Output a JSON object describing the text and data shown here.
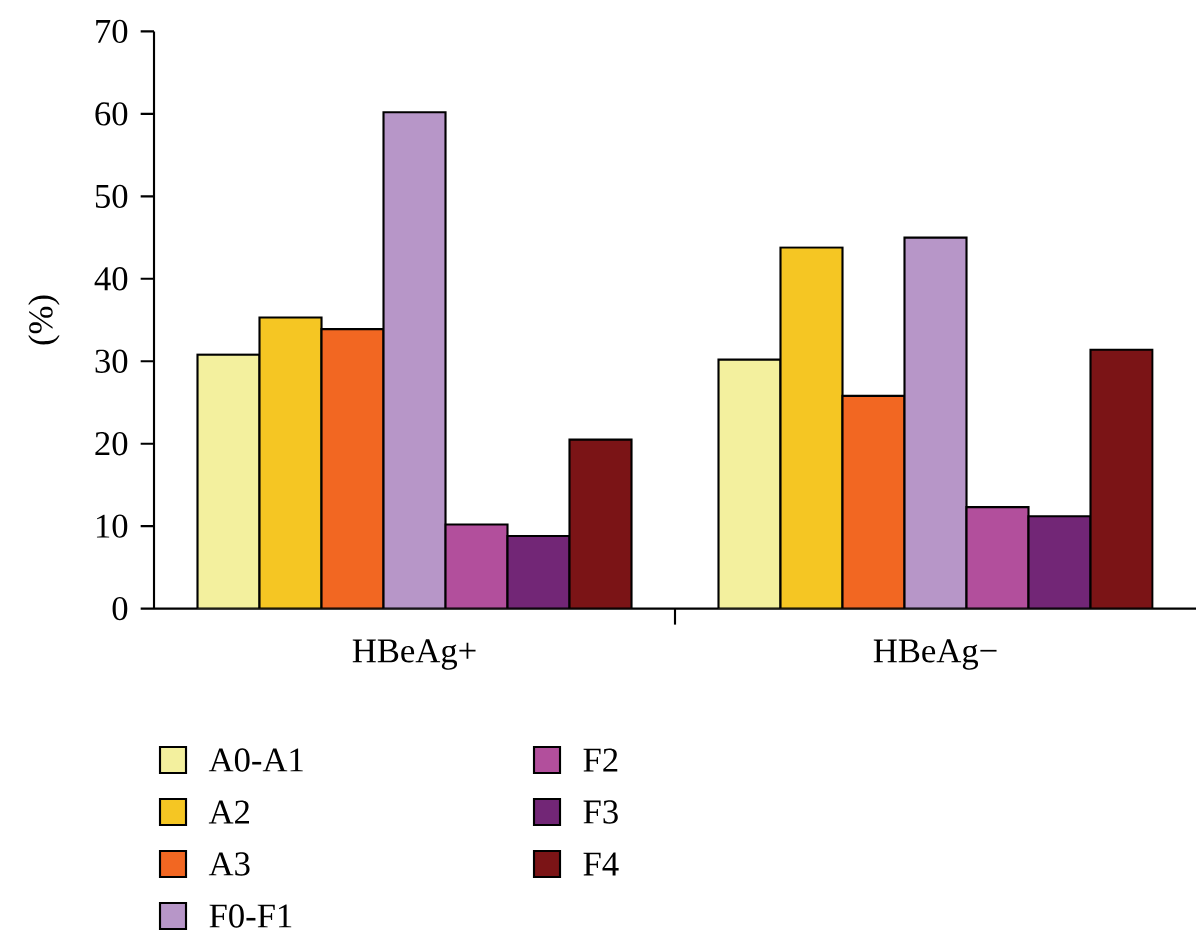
{
  "chart_data": {
    "type": "bar",
    "ylabel": "(%)",
    "categories": [
      "HBeAg+",
      "HBeAg−"
    ],
    "series": [
      {
        "name": "A0-A1",
        "color": "#f3f09e",
        "values": [
          30.8,
          30.2
        ]
      },
      {
        "name": "A2",
        "color": "#f5c623",
        "values": [
          35.3,
          43.8
        ]
      },
      {
        "name": "A3",
        "color": "#f26722",
        "values": [
          33.9,
          25.8
        ]
      },
      {
        "name": "F0-F1",
        "color": "#b796c8",
        "values": [
          60.2,
          45.0
        ]
      },
      {
        "name": "F2",
        "color": "#b24f9c",
        "values": [
          10.2,
          12.3
        ]
      },
      {
        "name": "F3",
        "color": "#722676",
        "values": [
          8.8,
          11.2
        ]
      },
      {
        "name": "F4",
        "color": "#7b1416",
        "values": [
          20.5,
          31.4
        ]
      }
    ],
    "ylim": [
      0,
      70
    ],
    "yticks": [
      0,
      10,
      20,
      30,
      40,
      50,
      60,
      70
    ],
    "grid": false,
    "legend": "bottom left"
  }
}
